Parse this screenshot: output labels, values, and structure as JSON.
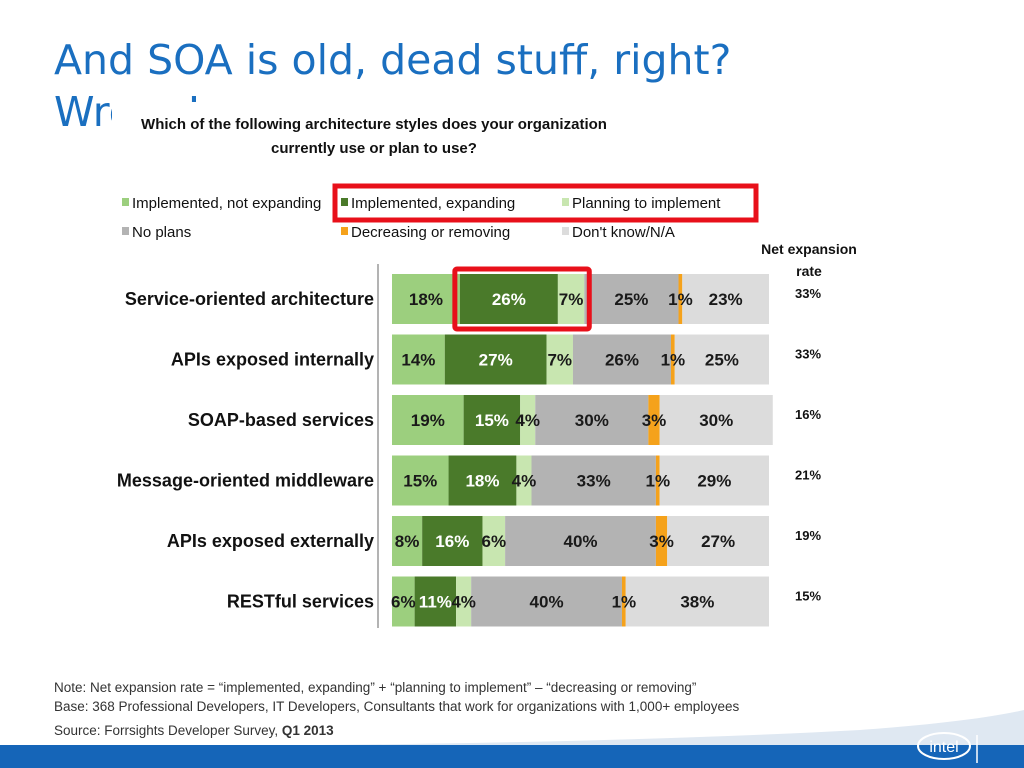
{
  "slide": {
    "title": "And SOA is old, dead stuff, right?\nWrong!"
  },
  "chart_data": {
    "type": "bar",
    "orientation": "horizontal",
    "stacked": true,
    "title_lines": [
      "Which of the following architecture styles does your organization",
      "currently use or plan to use?"
    ],
    "xlim": [
      0,
      100
    ],
    "grid": false,
    "legend_position": "top",
    "categories": [
      "Service-oriented architecture",
      "APIs exposed internally",
      "SOAP-based services",
      "Message-oriented middleware",
      "APIs exposed externally",
      "RESTful services"
    ],
    "series": [
      {
        "name": "Implemented, not expanding",
        "color": "#9ccf7e",
        "label_color": "#1a1a1a",
        "values": [
          18,
          14,
          19,
          15,
          8,
          6
        ]
      },
      {
        "name": "Implemented, expanding",
        "color": "#4a7a2a",
        "label_color": "#ffffff",
        "values": [
          26,
          27,
          15,
          18,
          16,
          11
        ]
      },
      {
        "name": "Planning to implement",
        "color": "#c8e6b0",
        "label_color": "#1a1a1a",
        "values": [
          7,
          7,
          4,
          4,
          6,
          4
        ]
      },
      {
        "name": "No plans",
        "color": "#b3b3b3",
        "label_color": "#1a1a1a",
        "values": [
          25,
          26,
          30,
          33,
          40,
          40
        ]
      },
      {
        "name": "Decreasing or removing",
        "color": "#f5a21b",
        "label_color": "#1a1a1a",
        "values": [
          1,
          1,
          3,
          1,
          3,
          1
        ]
      },
      {
        "name": "Don't know/N/A",
        "color": "#dcdcdc",
        "label_color": "#1a1a1a",
        "values": [
          23,
          25,
          30,
          29,
          27,
          38
        ]
      }
    ],
    "net_expansion": {
      "title_lines": [
        "Net expansion",
        "rate"
      ],
      "values": [
        "33%",
        "33%",
        "16%",
        "21%",
        "19%",
        "15%"
      ]
    },
    "highlight": {
      "color": "#e8101a",
      "legend_series": [
        "Implemented, expanding",
        "Planning to implement"
      ],
      "bar_category": "Service-oriented architecture"
    }
  },
  "footnotes": {
    "note": "Note: Net expansion rate = “implemented, expanding” + “planning to implement” – “decreasing or removing”",
    "base": "Base: 368 Professional Developers, IT Developers, Consultants that work for organizations with 1,000+ employees",
    "source_prefix": "Source: Forrsights Developer Survey, ",
    "source_period": "Q1 2013"
  },
  "brand": {
    "logo_text": "intel",
    "band_color": "#1565b8"
  }
}
